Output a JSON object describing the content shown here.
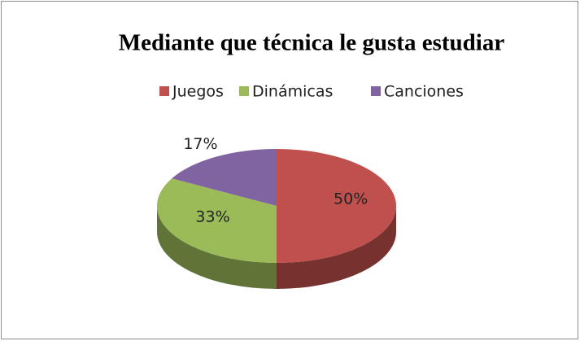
{
  "chart_data": {
    "type": "pie",
    "title": "Mediante que técnica le gusta estudiar",
    "categories": [
      "Juegos",
      "Dinámicas",
      "Canciones"
    ],
    "values": [
      50,
      33,
      17
    ],
    "value_labels": [
      "50%",
      "33%",
      "17%"
    ],
    "colors": [
      "#c0504d",
      "#9bbb59",
      "#8064a2"
    ],
    "legend": "top"
  }
}
